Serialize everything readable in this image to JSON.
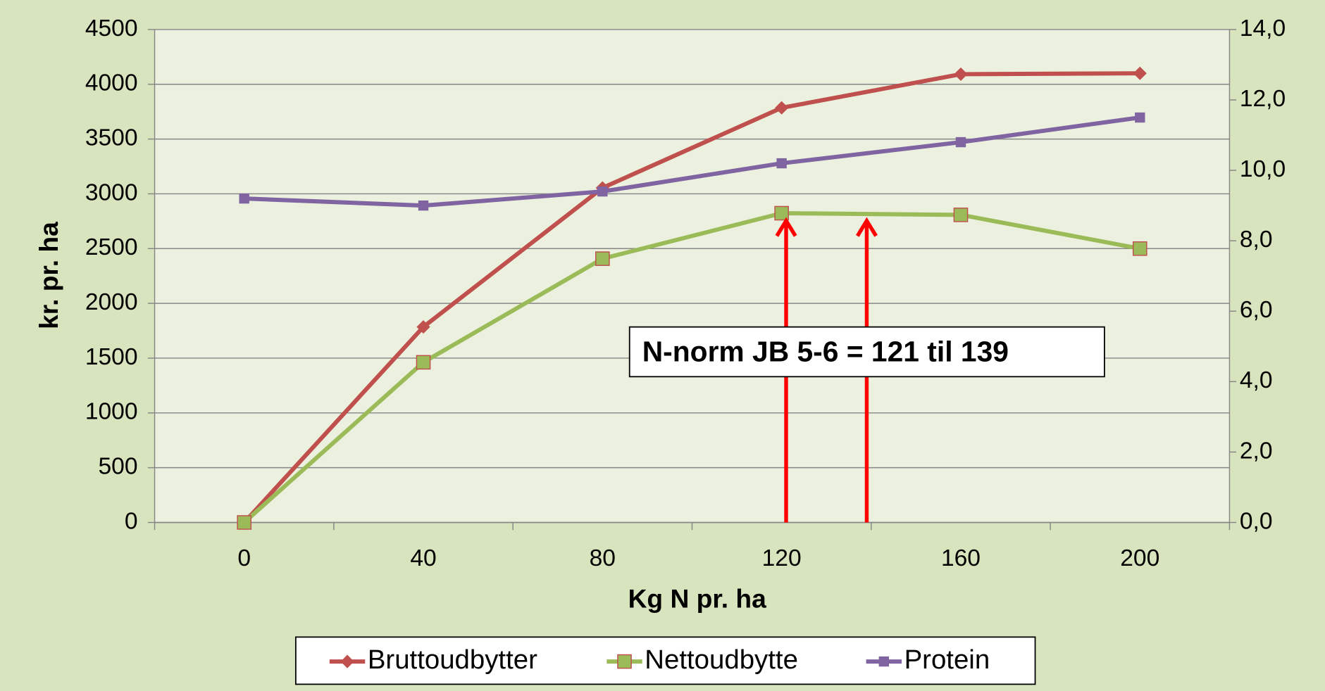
{
  "chart_data": {
    "type": "line",
    "xlabel": "Kg N pr. ha",
    "ylabel": "kr. pr. ha",
    "x": [
      0,
      40,
      80,
      120,
      160,
      200
    ],
    "xlim": [
      -20,
      220
    ],
    "xticks": [
      0,
      40,
      80,
      120,
      160,
      200
    ],
    "ylim": [
      0,
      4500
    ],
    "yticks": [
      0,
      500,
      1000,
      1500,
      2000,
      2500,
      3000,
      3500,
      4000,
      4500
    ],
    "y2lim": [
      0,
      14
    ],
    "y2ticks": [
      {
        "value": 0,
        "label": "0,0"
      },
      {
        "value": 2,
        "label": "2,0"
      },
      {
        "value": 4,
        "label": "4,0"
      },
      {
        "value": 6,
        "label": "6,0"
      },
      {
        "value": 8,
        "label": "8,0"
      },
      {
        "value": 10,
        "label": "10,0"
      },
      {
        "value": 12,
        "label": "12,0"
      },
      {
        "value": 14,
        "label": "14,0"
      }
    ],
    "grid": true,
    "legend": "bottom",
    "series": [
      {
        "name": "Bruttoudbytter",
        "color": "#c0504d",
        "marker": "diamond",
        "values": [
          0,
          1785,
          3054,
          3785,
          4092,
          4100
        ]
      },
      {
        "name": "Nettoudbytte",
        "color": "#9bbb59",
        "marker": "square",
        "values": [
          0,
          1462,
          2408,
          2823,
          2808,
          2500
        ]
      },
      {
        "name": "Protein",
        "color": "#8064a2",
        "marker": "small-square",
        "axis": "y2",
        "values": [
          9.2,
          9.0,
          9.4,
          10.2,
          10.8,
          11.5
        ]
      }
    ],
    "annotation": {
      "text": "N-norm JB 5-6 = 121 til 139",
      "arrows": [
        121,
        139
      ],
      "color": "#ff0000"
    }
  }
}
